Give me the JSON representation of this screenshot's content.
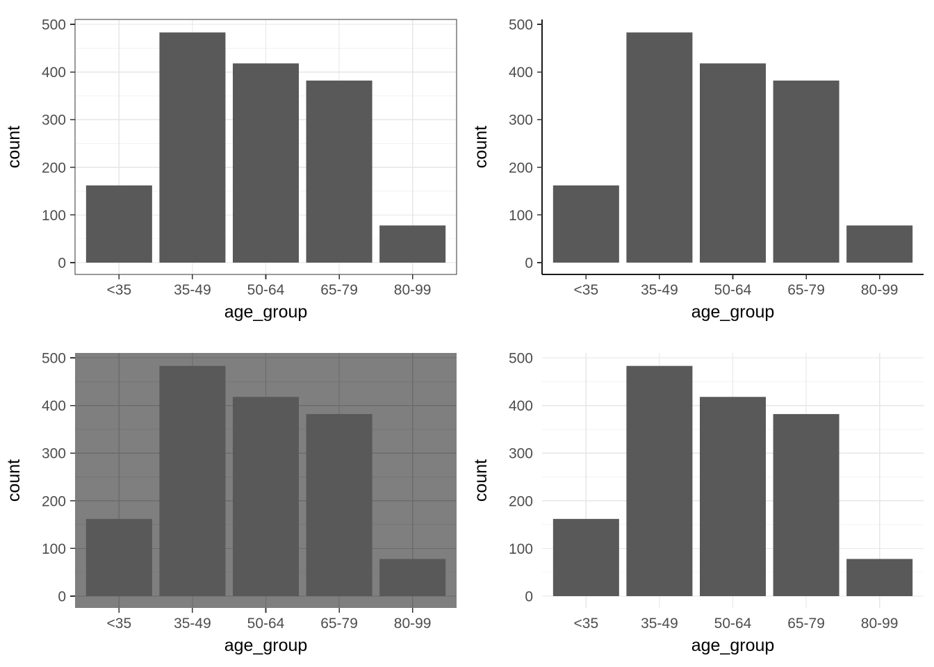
{
  "page": {
    "description_colors": {
      "bar_fill": "#595959",
      "tick_label": "#4d4d4d",
      "axis_title": "#000000",
      "panel_border": "#333333",
      "classic_axis_line": "#1a1a1a",
      "tick_mark": "#333333",
      "grid_major_light": "#e6e6e6",
      "grid_minor_light": "#f2f2f2",
      "dark_panel_bg": "#7f7f7f",
      "dark_grid_major": "#6b6b6b",
      "dark_grid_minor": "#747474",
      "background": "#ffffff"
    }
  },
  "chart_data": [
    {
      "id": "top-left",
      "type": "bar",
      "theme": "bw",
      "title": "",
      "xlabel": "age_group",
      "ylabel": "count",
      "categories": [
        "<35",
        "35-49",
        "50-64",
        "65-79",
        "80-99"
      ],
      "values": [
        162,
        483,
        418,
        382,
        78
      ],
      "yticks": [
        0,
        100,
        200,
        300,
        400,
        500
      ],
      "yticks_minor": [
        50,
        150,
        250,
        350,
        450
      ],
      "ylim": [
        0,
        500
      ],
      "grid": "major+minor",
      "legend": "none",
      "panel_border": true,
      "axis_lines": false,
      "axis_ticks": true,
      "panel_background": "white"
    },
    {
      "id": "top-right",
      "type": "bar",
      "theme": "classic",
      "title": "",
      "xlabel": "age_group",
      "ylabel": "count",
      "categories": [
        "<35",
        "35-49",
        "50-64",
        "65-79",
        "80-99"
      ],
      "values": [
        162,
        483,
        418,
        382,
        78
      ],
      "yticks": [
        0,
        100,
        200,
        300,
        400,
        500
      ],
      "yticks_minor": [],
      "ylim": [
        0,
        500
      ],
      "grid": "none",
      "legend": "none",
      "panel_border": false,
      "axis_lines": true,
      "axis_ticks": true,
      "panel_background": "white"
    },
    {
      "id": "bottom-left",
      "type": "bar",
      "theme": "dark",
      "title": "",
      "xlabel": "age_group",
      "ylabel": "count",
      "categories": [
        "<35",
        "35-49",
        "50-64",
        "65-79",
        "80-99"
      ],
      "values": [
        162,
        483,
        418,
        382,
        78
      ],
      "yticks": [
        0,
        100,
        200,
        300,
        400,
        500
      ],
      "yticks_minor": [
        50,
        150,
        250,
        350,
        450
      ],
      "ylim": [
        0,
        500
      ],
      "grid": "major+minor",
      "legend": "none",
      "panel_border": false,
      "axis_lines": false,
      "axis_ticks": true,
      "panel_background": "grey50"
    },
    {
      "id": "bottom-right",
      "type": "bar",
      "theme": "minimal",
      "title": "",
      "xlabel": "age_group",
      "ylabel": "count",
      "categories": [
        "<35",
        "35-49",
        "50-64",
        "65-79",
        "80-99"
      ],
      "values": [
        162,
        483,
        418,
        382,
        78
      ],
      "yticks": [
        0,
        100,
        200,
        300,
        400,
        500
      ],
      "yticks_minor": [
        50,
        150,
        250,
        350,
        450
      ],
      "ylim": [
        0,
        500
      ],
      "grid": "major+minor",
      "legend": "none",
      "panel_border": false,
      "axis_lines": false,
      "axis_ticks": false,
      "panel_background": "white"
    }
  ]
}
